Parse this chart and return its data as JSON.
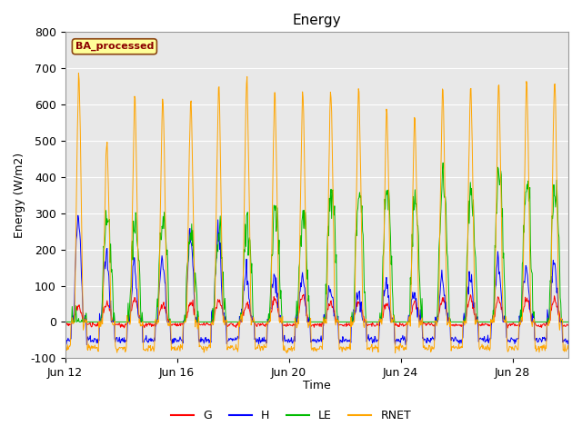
{
  "title": "Energy",
  "xlabel": "Time",
  "ylabel": "Energy (W/m2)",
  "ylim": [
    -100,
    800
  ],
  "yticks": [
    -100,
    0,
    100,
    200,
    300,
    400,
    500,
    600,
    700,
    800
  ],
  "colors": {
    "G": "#FF0000",
    "H": "#0000FF",
    "LE": "#00BB00",
    "RNET": "#FFA500"
  },
  "legend_label": "BA_processed",
  "legend_box_color": "#FFFF99",
  "legend_box_edge": "#8B4513",
  "num_days": 18,
  "points_per_day": 48,
  "background_color": "#E8E8E8",
  "grid_color": "#FFFFFF",
  "xtick_labels": [
    "Jun 12",
    "Jun 16",
    "Jun 20",
    "Jun 24",
    "Jun 28"
  ],
  "xtick_positions": [
    0,
    4,
    8,
    12,
    16
  ],
  "figsize": [
    6.4,
    4.8
  ],
  "dpi": 100
}
